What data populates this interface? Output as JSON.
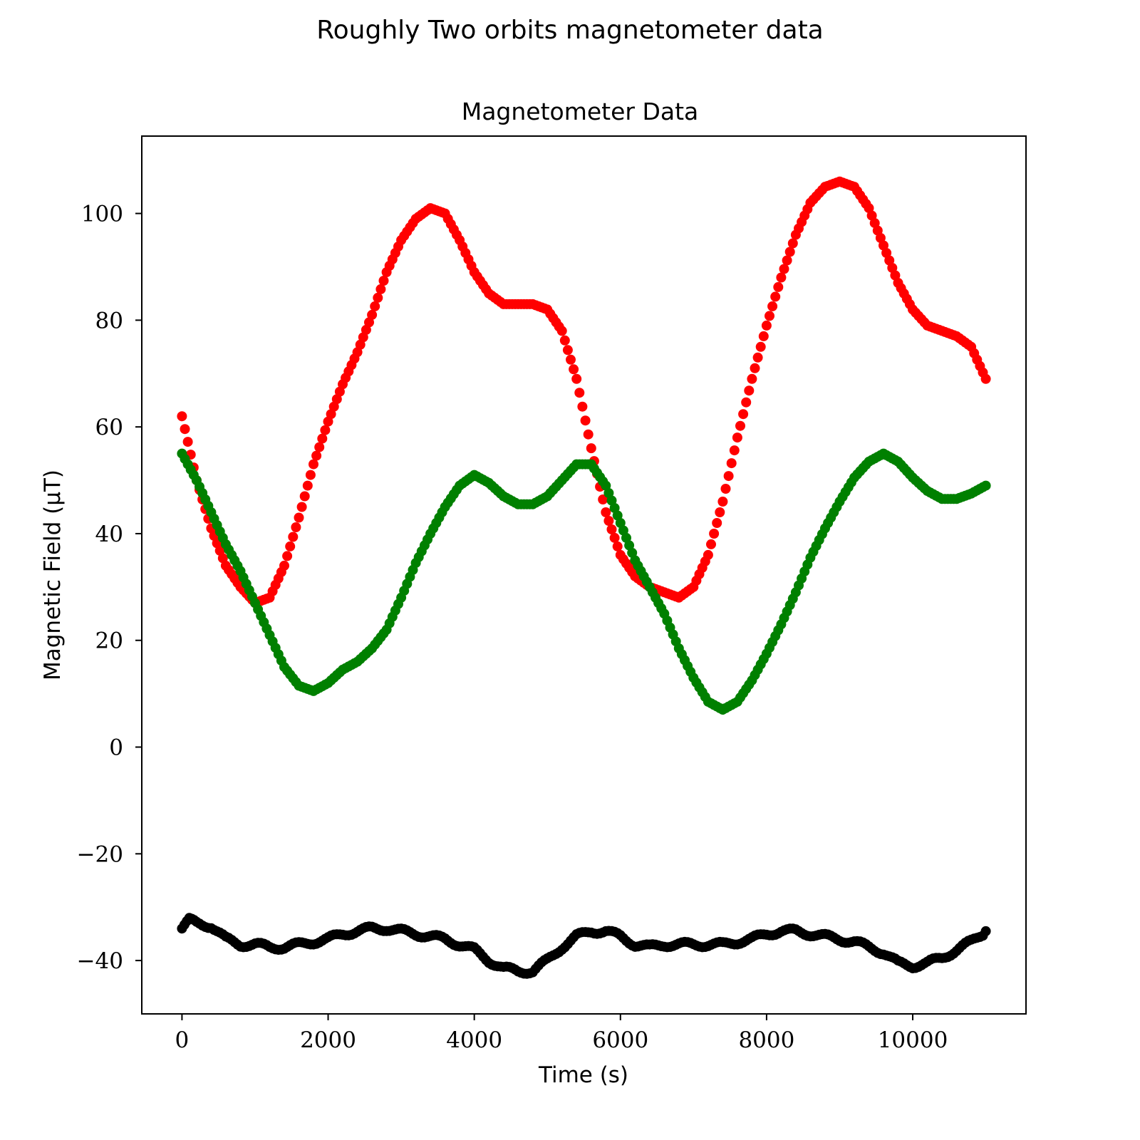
{
  "figure": {
    "suptitle": "Roughly Two orbits magnetometer data"
  },
  "chart_data": {
    "type": "scatter",
    "title": "Magnetometer Data",
    "xlabel": "Time (s)",
    "ylabel": "Magnetic Field (μT)",
    "xlim": [
      -550,
      11550
    ],
    "ylim": [
      -50,
      114.5
    ],
    "xticks": [
      0,
      2000,
      4000,
      6000,
      8000,
      10000
    ],
    "xtick_labels": [
      "0",
      "2000",
      "4000",
      "6000",
      "8000",
      "10000"
    ],
    "yticks": [
      -40,
      -20,
      0,
      20,
      40,
      60,
      80,
      100
    ],
    "ytick_labels": [
      "−40",
      "−20",
      "0",
      "20",
      "40",
      "60",
      "80",
      "100"
    ],
    "grid": false,
    "series": [
      {
        "name": "red",
        "color": "#ff0000",
        "points": [
          [
            0,
            62
          ],
          [
            200,
            50
          ],
          [
            400,
            41
          ],
          [
            600,
            34
          ],
          [
            800,
            30
          ],
          [
            1000,
            27
          ],
          [
            1200,
            28
          ],
          [
            1400,
            34
          ],
          [
            1600,
            43
          ],
          [
            1800,
            53
          ],
          [
            2000,
            61
          ],
          [
            2200,
            68
          ],
          [
            2400,
            74
          ],
          [
            2600,
            81
          ],
          [
            2800,
            89
          ],
          [
            3000,
            95
          ],
          [
            3200,
            99
          ],
          [
            3400,
            101
          ],
          [
            3600,
            100
          ],
          [
            3800,
            95
          ],
          [
            4000,
            89
          ],
          [
            4200,
            85
          ],
          [
            4400,
            83
          ],
          [
            4600,
            83
          ],
          [
            4800,
            83
          ],
          [
            5000,
            82
          ],
          [
            5200,
            78
          ],
          [
            5400,
            69
          ],
          [
            5600,
            56
          ],
          [
            5800,
            44
          ],
          [
            6000,
            36
          ],
          [
            6200,
            32
          ],
          [
            6400,
            30
          ],
          [
            6600,
            29
          ],
          [
            6800,
            28
          ],
          [
            7000,
            30
          ],
          [
            7200,
            36
          ],
          [
            7400,
            46
          ],
          [
            7600,
            58
          ],
          [
            7800,
            69
          ],
          [
            8000,
            79
          ],
          [
            8200,
            88
          ],
          [
            8400,
            96
          ],
          [
            8600,
            102
          ],
          [
            8800,
            105
          ],
          [
            9000,
            106
          ],
          [
            9200,
            105
          ],
          [
            9400,
            101
          ],
          [
            9600,
            94
          ],
          [
            9800,
            87
          ],
          [
            10000,
            82
          ],
          [
            10200,
            79
          ],
          [
            10400,
            78
          ],
          [
            10600,
            77
          ],
          [
            10800,
            75
          ],
          [
            11000,
            69
          ]
        ]
      },
      {
        "name": "green",
        "color": "#008000",
        "points": [
          [
            0,
            55
          ],
          [
            200,
            50
          ],
          [
            400,
            44
          ],
          [
            600,
            38
          ],
          [
            800,
            33
          ],
          [
            1000,
            27
          ],
          [
            1200,
            21
          ],
          [
            1400,
            15
          ],
          [
            1600,
            11.5
          ],
          [
            1800,
            10.5
          ],
          [
            2000,
            12
          ],
          [
            2200,
            14.5
          ],
          [
            2400,
            16
          ],
          [
            2600,
            18.5
          ],
          [
            2800,
            22
          ],
          [
            3000,
            28
          ],
          [
            3200,
            34.5
          ],
          [
            3400,
            40
          ],
          [
            3600,
            45
          ],
          [
            3800,
            49
          ],
          [
            4000,
            51
          ],
          [
            4200,
            49.5
          ],
          [
            4400,
            47
          ],
          [
            4600,
            45.5
          ],
          [
            4800,
            45.5
          ],
          [
            5000,
            47
          ],
          [
            5200,
            50
          ],
          [
            5400,
            53
          ],
          [
            5600,
            53
          ],
          [
            5800,
            49
          ],
          [
            6000,
            42
          ],
          [
            6200,
            35
          ],
          [
            6400,
            30
          ],
          [
            6600,
            25
          ],
          [
            6800,
            18.5
          ],
          [
            7000,
            13
          ],
          [
            7200,
            8.5
          ],
          [
            7400,
            7
          ],
          [
            7600,
            8.5
          ],
          [
            7800,
            12.5
          ],
          [
            8000,
            17.5
          ],
          [
            8200,
            23
          ],
          [
            8400,
            29
          ],
          [
            8600,
            35.5
          ],
          [
            8800,
            41
          ],
          [
            9000,
            46
          ],
          [
            9200,
            50.5
          ],
          [
            9400,
            53.5
          ],
          [
            9600,
            55
          ],
          [
            9800,
            53.5
          ],
          [
            10000,
            50.5
          ],
          [
            10200,
            48
          ],
          [
            10400,
            46.5
          ],
          [
            10600,
            46.5
          ],
          [
            10800,
            47.5
          ],
          [
            11000,
            49
          ]
        ]
      },
      {
        "name": "black",
        "color": "#000000",
        "points": [
          [
            0,
            -34
          ],
          [
            100,
            -32.5
          ],
          [
            200,
            -33
          ],
          [
            400,
            -33.5
          ],
          [
            600,
            -36
          ],
          [
            800,
            -37
          ],
          [
            1000,
            -37
          ],
          [
            1200,
            -37.5
          ],
          [
            1400,
            -37.5
          ],
          [
            1600,
            -37
          ],
          [
            1800,
            -36.5
          ],
          [
            2000,
            -36
          ],
          [
            2200,
            -35
          ],
          [
            2400,
            -34.5
          ],
          [
            2600,
            -34
          ],
          [
            2800,
            -34
          ],
          [
            3000,
            -34.5
          ],
          [
            3200,
            -35
          ],
          [
            3400,
            -35.5
          ],
          [
            3600,
            -36
          ],
          [
            3800,
            -37
          ],
          [
            4000,
            -38
          ],
          [
            4200,
            -40
          ],
          [
            4400,
            -41.5
          ],
          [
            4600,
            -42
          ],
          [
            4800,
            -42
          ],
          [
            5000,
            -40
          ],
          [
            5200,
            -37.5
          ],
          [
            5400,
            -35.5
          ],
          [
            5600,
            -34.5
          ],
          [
            5800,
            -34.5
          ],
          [
            6000,
            -35.5
          ],
          [
            6200,
            -37
          ],
          [
            6400,
            -37.5
          ],
          [
            6600,
            -37
          ],
          [
            6800,
            -37
          ],
          [
            7000,
            -37
          ],
          [
            7200,
            -37
          ],
          [
            7400,
            -37
          ],
          [
            7600,
            -36.5
          ],
          [
            7800,
            -36
          ],
          [
            8000,
            -35
          ],
          [
            8200,
            -34.5
          ],
          [
            8400,
            -34.5
          ],
          [
            8600,
            -35
          ],
          [
            8800,
            -35.5
          ],
          [
            9000,
            -36
          ],
          [
            9200,
            -36.5
          ],
          [
            9400,
            -37.5
          ],
          [
            9600,
            -38.5
          ],
          [
            9800,
            -40.5
          ],
          [
            10000,
            -41
          ],
          [
            10200,
            -40.5
          ],
          [
            10400,
            -39.5
          ],
          [
            10600,
            -38
          ],
          [
            10800,
            -36.5
          ],
          [
            11000,
            -34.5
          ]
        ]
      }
    ]
  }
}
